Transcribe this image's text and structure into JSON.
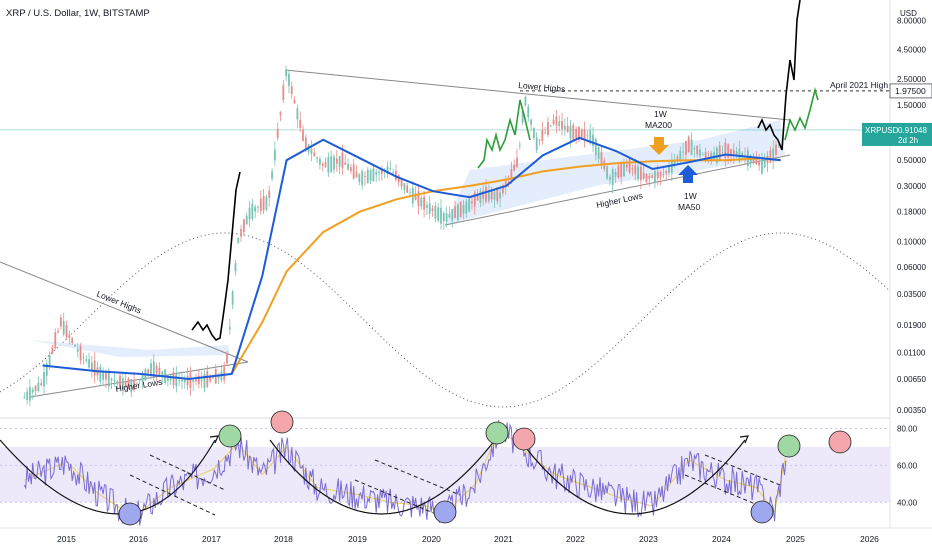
{
  "header": {
    "title": "XRP / U.S. Dollar, 1W, BITSTAMP"
  },
  "price_axis": {
    "currency": "USD",
    "ticks": [
      "8.00000",
      "4.50000",
      "2.50000",
      "1.50000",
      "0.50000",
      "0.30000",
      "0.18000",
      "0.10000",
      "0.06000",
      "0.03500",
      "0.01900",
      "0.01100",
      "0.00650",
      "0.00350"
    ],
    "last_price_label": "XRPUSD",
    "last_price": "0.91048",
    "countdown": "2d 2h",
    "highlight_value": "1.97500"
  },
  "rsi_axis": {
    "ticks": [
      "80.00",
      "60.00",
      "40.00"
    ]
  },
  "time_axis": {
    "ticks": [
      "2015",
      "2016",
      "2017",
      "2018",
      "2019",
      "2020",
      "2021",
      "2022",
      "2023",
      "2024",
      "2025",
      "2026"
    ]
  },
  "annotations": {
    "april_high": "April 2021 High",
    "lower_highs_1": "Lower Highs",
    "higher_lows_1": "Higher Lows",
    "lower_highs_2": "Lower Highs",
    "higher_lows_2": "Higher Lows",
    "ma200_line1": "1W",
    "ma200_line2": "MA200",
    "ma50_line1": "1W",
    "ma50_line2": "MA50"
  },
  "colors": {
    "ma50": "#1e5bd8",
    "ma200": "#f0a020",
    "green_fractal": "#2e9e3a",
    "projection": "#000000",
    "price_up": "#78c3b4",
    "price_down": "#e88b8b",
    "rsi_line": "#7b6cd1",
    "rsi_band": "#ede9fb",
    "wedge_fill": "#dde8fb",
    "last_price_badge": "#26a69a",
    "circle_green": "#9fd8a3",
    "circle_red": "#f3a7ad",
    "circle_blue": "#9fa8ee"
  },
  "chart_data": {
    "type": "line",
    "log_scale": true,
    "x_range": [
      "2014-05",
      "2026-07"
    ],
    "y_range": [
      0.003,
      12
    ],
    "series": [
      {
        "name": "XRPUSD",
        "x": [
          "2014-06",
          "2014-09",
          "2014-12",
          "2015-03",
          "2015-06",
          "2015-09",
          "2015-12",
          "2016-03",
          "2016-06",
          "2016-09",
          "2016-12",
          "2017-03",
          "2017-05",
          "2017-07",
          "2017-10",
          "2018-01",
          "2018-04",
          "2018-07",
          "2018-10",
          "2019-01",
          "2019-06",
          "2019-09",
          "2019-12",
          "2020-03",
          "2020-06",
          "2020-09",
          "2020-12",
          "2021-03",
          "2021-04",
          "2021-06",
          "2021-09",
          "2021-12",
          "2022-03",
          "2022-06",
          "2022-09",
          "2022-12",
          "2023-03",
          "2023-07",
          "2023-10",
          "2024-01",
          "2024-04",
          "2024-07",
          "2024-09",
          "2024-11",
          "2024-12",
          "2025-03",
          "2025-05"
        ],
        "y": [
          0.0045,
          0.006,
          0.02,
          0.011,
          0.0075,
          0.0062,
          0.0057,
          0.0082,
          0.0065,
          0.0062,
          0.0064,
          0.0072,
          0.1,
          0.18,
          0.22,
          3.0,
          0.7,
          0.45,
          0.5,
          0.35,
          0.42,
          0.27,
          0.2,
          0.16,
          0.19,
          0.25,
          0.25,
          0.5,
          1.75,
          0.7,
          1.1,
          0.85,
          0.8,
          0.35,
          0.45,
          0.35,
          0.38,
          0.68,
          0.52,
          0.6,
          0.55,
          0.45,
          0.58,
          0.9,
          2.5,
          2.3,
          2.1
        ]
      },
      {
        "name": "1W MA50",
        "x": [
          "2014-09",
          "2015-06",
          "2016-01",
          "2016-09",
          "2017-04",
          "2017-09",
          "2018-01",
          "2018-07",
          "2019-01",
          "2019-07",
          "2020-01",
          "2020-07",
          "2021-01",
          "2021-07",
          "2022-01",
          "2022-07",
          "2023-01",
          "2023-07",
          "2024-01",
          "2024-07",
          "2024-10"
        ],
        "y": [
          0.0085,
          0.0076,
          0.0072,
          0.0065,
          0.0072,
          0.05,
          0.5,
          0.75,
          0.52,
          0.36,
          0.27,
          0.24,
          0.3,
          0.55,
          0.78,
          0.6,
          0.42,
          0.48,
          0.56,
          0.52,
          0.5
        ]
      },
      {
        "name": "1W MA200",
        "x": [
          "2017-04",
          "2017-09",
          "2018-01",
          "2018-07",
          "2019-01",
          "2019-07",
          "2020-01",
          "2020-07",
          "2021-01",
          "2021-07",
          "2022-01",
          "2022-07",
          "2023-01",
          "2023-07",
          "2024-01",
          "2024-07",
          "2024-10"
        ],
        "y": [
          0.0072,
          0.02,
          0.055,
          0.12,
          0.18,
          0.23,
          0.27,
          0.3,
          0.34,
          0.4,
          0.44,
          0.47,
          0.49,
          0.5,
          0.5,
          0.52,
          0.5
        ]
      }
    ],
    "rsi": {
      "x": [
        "2014-06",
        "2015-01",
        "2015-06",
        "2015-12",
        "2016-06",
        "2017-01",
        "2017-05",
        "2017-09",
        "2018-01",
        "2018-06",
        "2019-01",
        "2019-06",
        "2019-12",
        "2020-03",
        "2020-08",
        "2020-12",
        "2021-04",
        "2021-09",
        "2022-03",
        "2022-08",
        "2023-01",
        "2023-07",
        "2024-01",
        "2024-06",
        "2024-09",
        "2024-11"
      ],
      "y": [
        52,
        62,
        45,
        32,
        48,
        58,
        72,
        55,
        70,
        48,
        44,
        40,
        38,
        34,
        50,
        80,
        68,
        55,
        48,
        42,
        38,
        63,
        52,
        48,
        35,
        68
      ],
      "band": [
        40,
        70
      ],
      "ticks": [
        40,
        60,
        80
      ]
    }
  }
}
